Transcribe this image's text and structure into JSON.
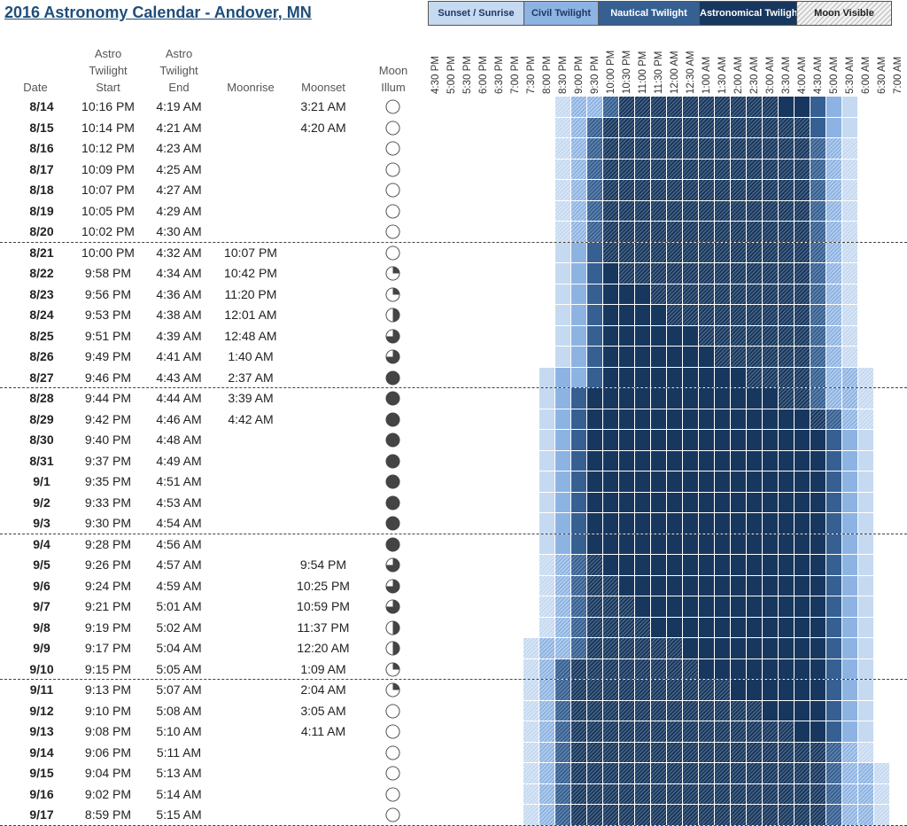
{
  "title": "2016 Astronomy Calendar - Andover, MN",
  "legend": [
    {
      "label": "Sunset / Sunrise",
      "bg": "#c5d9f1",
      "fg": "#1f3864"
    },
    {
      "label": "Civil Twilight",
      "bg": "#8db3e2",
      "fg": "#1f3864"
    },
    {
      "label": "Nautical Twilight",
      "bg": "#366092",
      "fg": "#ffffff"
    },
    {
      "label": "Astronomical Twilight",
      "bg": "#17375e",
      "fg": "#ffffff"
    },
    {
      "label": "Moon Visible",
      "bg": "#f2f2f2",
      "fg": "#222222"
    }
  ],
  "headers": {
    "date": "Date",
    "astro_start": [
      "Astro",
      "Twilight",
      "Start"
    ],
    "astro_end": [
      "Astro",
      "Twilight",
      "End"
    ],
    "moonrise": "Moonrise",
    "moonset": "Moonset",
    "moon_illum": [
      "Moon",
      "Illum"
    ]
  },
  "time_labels": [
    "4:30 PM",
    "5:00 PM",
    "5:30 PM",
    "6:00 PM",
    "6:30 PM",
    "7:00 PM",
    "7:30 PM",
    "8:00 PM",
    "8:30 PM",
    "9:00 PM",
    "9:30 PM",
    "10:00 PM",
    "10:30 PM",
    "11:00 PM",
    "11:30 PM",
    "12:00 AM",
    "12:30 AM",
    "1:00 AM",
    "1:30 AM",
    "2:00 AM",
    "2:30 AM",
    "3:00 AM",
    "3:30 AM",
    "4:00 AM",
    "4:30 AM",
    "5:00 AM",
    "5:30 AM",
    "6:00 AM",
    "6:30 AM",
    "7:00 AM"
  ],
  "rows": [
    {
      "date": "8/14",
      "astro_start": "10:16 PM",
      "astro_end": "4:19 AM",
      "moonrise": "",
      "moonset": "3:21 AM",
      "moon_phase": "new"
    },
    {
      "date": "8/15",
      "astro_start": "10:14 PM",
      "astro_end": "4:21 AM",
      "moonrise": "",
      "moonset": "4:20 AM",
      "moon_phase": "new"
    },
    {
      "date": "8/16",
      "astro_start": "10:12 PM",
      "astro_end": "4:23 AM",
      "moonrise": "",
      "moonset": "",
      "moon_phase": "new"
    },
    {
      "date": "8/17",
      "astro_start": "10:09 PM",
      "astro_end": "4:25 AM",
      "moonrise": "",
      "moonset": "",
      "moon_phase": "new"
    },
    {
      "date": "8/18",
      "astro_start": "10:07 PM",
      "astro_end": "4:27 AM",
      "moonrise": "",
      "moonset": "",
      "moon_phase": "new"
    },
    {
      "date": "8/19",
      "astro_start": "10:05 PM",
      "astro_end": "4:29 AM",
      "moonrise": "",
      "moonset": "",
      "moon_phase": "new"
    },
    {
      "date": "8/20",
      "astro_start": "10:02 PM",
      "astro_end": "4:30 AM",
      "moonrise": "",
      "moonset": "",
      "moon_phase": "new"
    },
    {
      "date": "8/21",
      "astro_start": "10:00 PM",
      "astro_end": "4:32 AM",
      "moonrise": "10:07 PM",
      "moonset": "",
      "moon_phase": "new"
    },
    {
      "date": "8/22",
      "astro_start": "9:58 PM",
      "astro_end": "4:34 AM",
      "moonrise": "10:42 PM",
      "moonset": "",
      "moon_phase": "quarter"
    },
    {
      "date": "8/23",
      "astro_start": "9:56 PM",
      "astro_end": "4:36 AM",
      "moonrise": "11:20 PM",
      "moonset": "",
      "moon_phase": "quarter"
    },
    {
      "date": "8/24",
      "astro_start": "9:53 PM",
      "astro_end": "4:38 AM",
      "moonrise": "12:01 AM",
      "moonset": "",
      "moon_phase": "half"
    },
    {
      "date": "8/25",
      "astro_start": "9:51 PM",
      "astro_end": "4:39 AM",
      "moonrise": "12:48 AM",
      "moonset": "",
      "moon_phase": "three-quarter"
    },
    {
      "date": "8/26",
      "astro_start": "9:49 PM",
      "astro_end": "4:41 AM",
      "moonrise": "1:40 AM",
      "moonset": "",
      "moon_phase": "three-quarter"
    },
    {
      "date": "8/27",
      "astro_start": "9:46 PM",
      "astro_end": "4:43 AM",
      "moonrise": "2:37 AM",
      "moonset": "",
      "moon_phase": "full"
    },
    {
      "date": "8/28",
      "astro_start": "9:44 PM",
      "astro_end": "4:44 AM",
      "moonrise": "3:39 AM",
      "moonset": "",
      "moon_phase": "full"
    },
    {
      "date": "8/29",
      "astro_start": "9:42 PM",
      "astro_end": "4:46 AM",
      "moonrise": "4:42 AM",
      "moonset": "",
      "moon_phase": "full"
    },
    {
      "date": "8/30",
      "astro_start": "9:40 PM",
      "astro_end": "4:48 AM",
      "moonrise": "",
      "moonset": "",
      "moon_phase": "full"
    },
    {
      "date": "8/31",
      "astro_start": "9:37 PM",
      "astro_end": "4:49 AM",
      "moonrise": "",
      "moonset": "",
      "moon_phase": "full"
    },
    {
      "date": "9/1",
      "astro_start": "9:35 PM",
      "astro_end": "4:51 AM",
      "moonrise": "",
      "moonset": "",
      "moon_phase": "full"
    },
    {
      "date": "9/2",
      "astro_start": "9:33 PM",
      "astro_end": "4:53 AM",
      "moonrise": "",
      "moonset": "",
      "moon_phase": "full"
    },
    {
      "date": "9/3",
      "astro_start": "9:30 PM",
      "astro_end": "4:54 AM",
      "moonrise": "",
      "moonset": "",
      "moon_phase": "full"
    },
    {
      "date": "9/4",
      "astro_start": "9:28 PM",
      "astro_end": "4:56 AM",
      "moonrise": "",
      "moonset": "",
      "moon_phase": "full"
    },
    {
      "date": "9/5",
      "astro_start": "9:26 PM",
      "astro_end": "4:57 AM",
      "moonrise": "",
      "moonset": "9:54 PM",
      "moon_phase": "three-quarter"
    },
    {
      "date": "9/6",
      "astro_start": "9:24 PM",
      "astro_end": "4:59 AM",
      "moonrise": "",
      "moonset": "10:25 PM",
      "moon_phase": "three-quarter"
    },
    {
      "date": "9/7",
      "astro_start": "9:21 PM",
      "astro_end": "5:01 AM",
      "moonrise": "",
      "moonset": "10:59 PM",
      "moon_phase": "three-quarter"
    },
    {
      "date": "9/8",
      "astro_start": "9:19 PM",
      "astro_end": "5:02 AM",
      "moonrise": "",
      "moonset": "11:37 PM",
      "moon_phase": "half"
    },
    {
      "date": "9/9",
      "astro_start": "9:17 PM",
      "astro_end": "5:04 AM",
      "moonrise": "",
      "moonset": "12:20 AM",
      "moon_phase": "half"
    },
    {
      "date": "9/10",
      "astro_start": "9:15 PM",
      "astro_end": "5:05 AM",
      "moonrise": "",
      "moonset": "1:09 AM",
      "moon_phase": "quarter"
    },
    {
      "date": "9/11",
      "astro_start": "9:13 PM",
      "astro_end": "5:07 AM",
      "moonrise": "",
      "moonset": "2:04 AM",
      "moon_phase": "quarter"
    },
    {
      "date": "9/12",
      "astro_start": "9:10 PM",
      "astro_end": "5:08 AM",
      "moonrise": "",
      "moonset": "3:05 AM",
      "moon_phase": "new"
    },
    {
      "date": "9/13",
      "astro_start": "9:08 PM",
      "astro_end": "5:10 AM",
      "moonrise": "",
      "moonset": "4:11 AM",
      "moon_phase": "new"
    },
    {
      "date": "9/14",
      "astro_start": "9:06 PM",
      "astro_end": "5:11 AM",
      "moonrise": "",
      "moonset": "",
      "moon_phase": "new"
    },
    {
      "date": "9/15",
      "astro_start": "9:04 PM",
      "astro_end": "5:13 AM",
      "moonrise": "",
      "moonset": "",
      "moon_phase": "new"
    },
    {
      "date": "9/16",
      "astro_start": "9:02 PM",
      "astro_end": "5:14 AM",
      "moonrise": "",
      "moonset": "",
      "moon_phase": "new"
    },
    {
      "date": "9/17",
      "astro_start": "8:59 PM",
      "astro_end": "5:15 AM",
      "moonrise": "",
      "moonset": "",
      "moon_phase": "new"
    }
  ],
  "week_separators_after": [
    "8/20",
    "8/27",
    "9/3",
    "9/10"
  ]
}
